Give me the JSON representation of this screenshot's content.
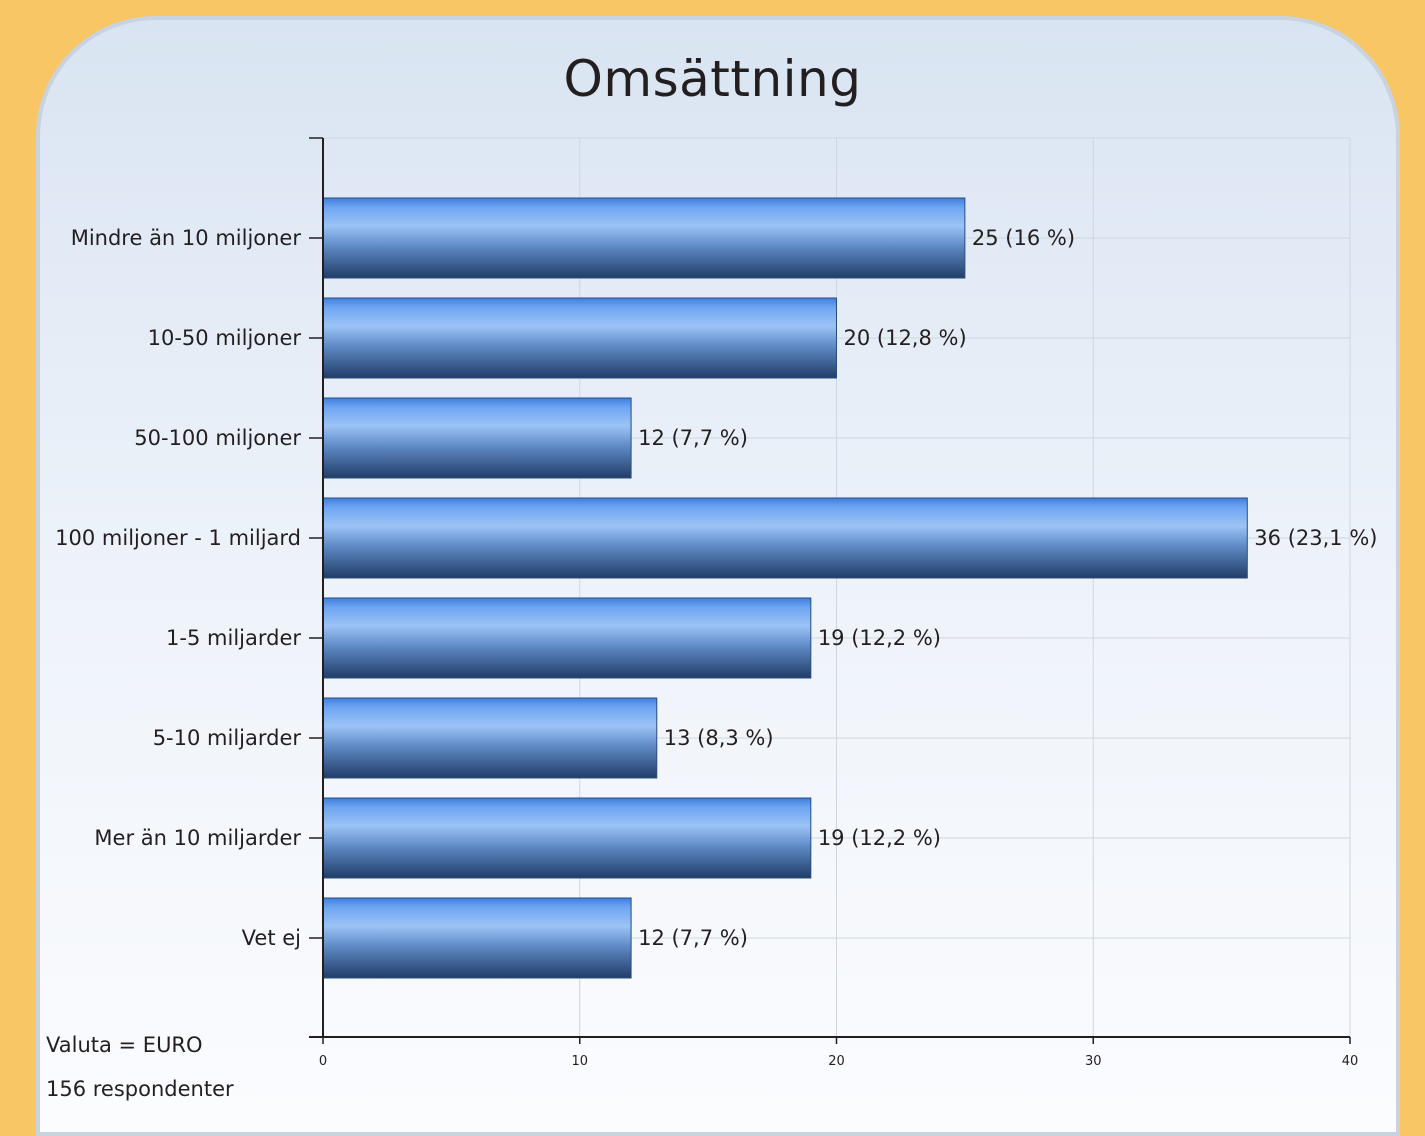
{
  "chart_data": {
    "type": "bar",
    "orientation": "horizontal",
    "title": "Omsättning",
    "categories": [
      "Mindre än 10 miljoner",
      "10-50 miljoner",
      "50-100 miljoner",
      "100 miljoner - 1 miljard",
      "1-5 miljarder",
      "5-10 miljarder",
      "Mer än 10 miljarder",
      "Vet ej"
    ],
    "values": [
      25,
      20,
      12,
      36,
      19,
      13,
      19,
      12
    ],
    "value_labels": [
      "25 (16 %)",
      "20 (12,8 %)",
      "12 (7,7 %)",
      "36 (23,1 %)",
      "19 (12,2 %)",
      "13 (8,3 %)",
      "19 (12,2 %)",
      "12 (7,7 %)"
    ],
    "xlim": [
      0,
      40
    ],
    "xticks": [
      0,
      10,
      20,
      30,
      40
    ],
    "grid": true,
    "bar_color": "#4a86d8",
    "xlabel": "",
    "ylabel": ""
  },
  "notes": {
    "currency": "Valuta = EURO",
    "respondents": "156 respondenter"
  },
  "colors": {
    "background": "#f8c665",
    "bar_light": "#8fbcf5",
    "bar_dark": "#233f6a"
  }
}
